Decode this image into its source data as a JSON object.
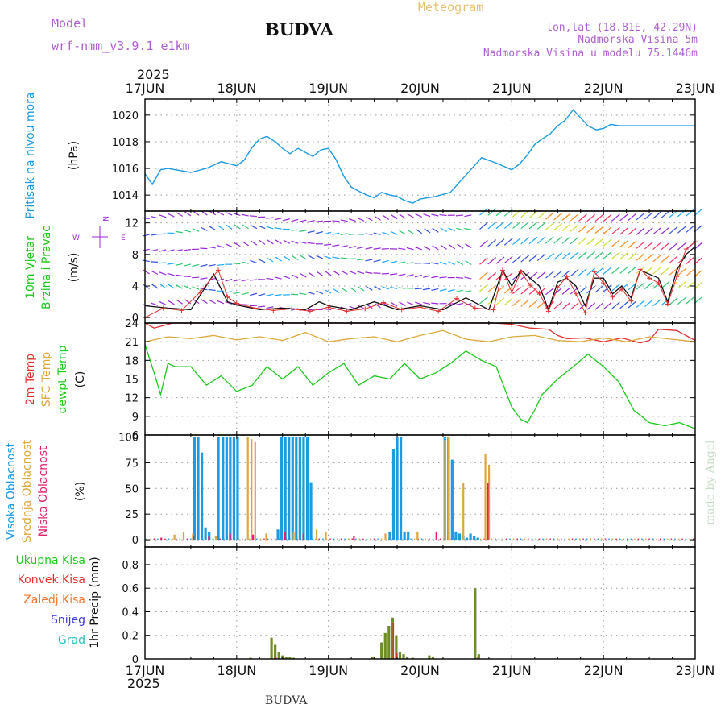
{
  "header": {
    "model_label": "Model",
    "model_name": "wrf-nmm_v3.9.1 e1km",
    "city": "BUDVA",
    "product": "Meteogram",
    "lonlat": "lon,lat (18.81E, 42.29N)",
    "elevation": "Nadmorska Visina 5m",
    "model_elevation": "Nadmorska Visina u modelu 75.1446m",
    "footer_city": "BUDVA",
    "credit": "made by Angel"
  },
  "colors": {
    "pressure": "#1e9be0",
    "temp2m": "#e03030",
    "sfc": "#dca83c",
    "dewpt": "#1ec81e",
    "high_cloud": "#1e9be0",
    "mid_cloud": "#dca83c",
    "low_cloud": "#e0206c",
    "total_precip": "#6e8c28",
    "wind_speed": "#111111",
    "gust": "#e03030",
    "level_purple": "#9a28d8",
    "grid": "#999999"
  },
  "time_axis": {
    "year": "2025",
    "ticks": [
      "17JUN",
      "18JUN",
      "19JUN",
      "20JUN",
      "21JUN",
      "22JUN",
      "23JUN"
    ],
    "range_days": [
      0,
      6
    ]
  },
  "chart_data": [
    {
      "type": "line",
      "panel": "pressure",
      "ylabel": "Pritisak na nivou mora",
      "unit": "(hPa)",
      "ylim": [
        1012.8,
        1021.2
      ],
      "yticks": [
        1014,
        1016,
        1018,
        1020
      ],
      "grid": true,
      "series": [
        {
          "name": "Pritisak na nivou mora",
          "x": [
            0,
            0.08,
            0.17,
            0.25,
            0.33,
            0.5,
            0.67,
            0.83,
            1.0,
            1.08,
            1.17,
            1.25,
            1.33,
            1.42,
            1.5,
            1.58,
            1.67,
            1.75,
            1.83,
            1.92,
            2.0,
            2.08,
            2.17,
            2.25,
            2.33,
            2.42,
            2.5,
            2.58,
            2.67,
            2.75,
            2.83,
            2.92,
            3.0,
            3.17,
            3.33,
            3.5,
            3.67,
            3.83,
            4.0,
            4.08,
            4.17,
            4.25,
            4.33,
            4.42,
            4.5,
            4.58,
            4.67,
            4.75,
            4.83,
            4.92,
            5.0,
            5.08,
            5.17,
            5.25,
            5.33,
            5.42,
            5.5,
            5.58,
            5.67,
            5.75,
            5.83,
            5.92,
            6.0
          ],
          "values": [
            1015.6,
            1014.8,
            1015.9,
            1016.0,
            1015.9,
            1015.7,
            1016.0,
            1016.5,
            1016.2,
            1016.6,
            1017.6,
            1018.2,
            1018.4,
            1018.0,
            1017.5,
            1017.1,
            1017.5,
            1017.2,
            1016.9,
            1017.4,
            1017.5,
            1016.7,
            1015.4,
            1014.6,
            1014.3,
            1014.0,
            1013.8,
            1014.2,
            1014.0,
            1013.9,
            1013.6,
            1013.4,
            1013.7,
            1013.9,
            1014.2,
            1015.5,
            1016.8,
            1016.4,
            1015.9,
            1016.3,
            1017.0,
            1017.8,
            1018.2,
            1018.6,
            1019.2,
            1019.6,
            1020.4,
            1019.8,
            1019.2,
            1018.9,
            1019.0,
            1019.3,
            1019.2,
            1019.2,
            1019.2,
            1019.2,
            1019.2,
            1019.2,
            1019.2,
            1019.2,
            1019.2,
            1019.2,
            1019.2
          ]
        }
      ]
    },
    {
      "type": "line",
      "panel": "wind",
      "ylabel": "10m Vjetar Brzina i Pravac",
      "unit": "(m/s)",
      "compass": [
        "W",
        "N",
        "E"
      ],
      "ylim": [
        -0.7,
        13.5
      ],
      "yticks": [
        0,
        4,
        8,
        12
      ],
      "grid": true,
      "series": [
        {
          "name": "Brzina",
          "x": [
            0,
            0.25,
            0.5,
            0.75,
            0.9,
            1.0,
            1.25,
            1.5,
            1.75,
            1.9,
            2.0,
            2.25,
            2.5,
            2.75,
            3.0,
            3.25,
            3.5,
            3.75,
            3.9,
            4.0,
            4.1,
            4.2,
            4.3,
            4.4,
            4.5,
            4.6,
            4.7,
            4.8,
            4.9,
            5.0,
            5.1,
            5.2,
            5.3,
            5.4,
            5.5,
            5.6,
            5.7,
            5.8,
            5.9,
            6.0
          ],
          "values": [
            1.5,
            1.2,
            1.0,
            5.5,
            2.0,
            1.6,
            1.0,
            1.2,
            1.0,
            2.0,
            1.5,
            1.0,
            2.0,
            1.0,
            1.5,
            1.0,
            2.5,
            1.0,
            6.0,
            4.0,
            6.0,
            5.0,
            4.0,
            1.0,
            4.5,
            5.0,
            4.0,
            1.5,
            5.0,
            5.0,
            3.0,
            4.0,
            2.5,
            6.0,
            5.5,
            5.0,
            2.0,
            6.0,
            8.0,
            9.0
          ]
        },
        {
          "name": "Udari",
          "x": [
            0,
            0.2,
            0.4,
            0.6,
            0.8,
            0.9,
            1.0,
            1.2,
            1.4,
            1.6,
            1.8,
            2.0,
            2.2,
            2.4,
            2.6,
            2.8,
            3.0,
            3.2,
            3.4,
            3.6,
            3.8,
            3.9,
            4.0,
            4.1,
            4.2,
            4.3,
            4.4,
            4.5,
            4.6,
            4.7,
            4.8,
            4.9,
            5.0,
            5.1,
            5.2,
            5.3,
            5.4,
            5.5,
            5.6,
            5.7,
            5.8,
            5.9,
            6.0
          ],
          "values": [
            0,
            1.2,
            0.9,
            3.2,
            6.0,
            2.6,
            1.8,
            1.2,
            0.9,
            1.1,
            0.8,
            1.3,
            0.8,
            1.1,
            1.9,
            1.0,
            1.3,
            0.8,
            2.4,
            1.2,
            1.0,
            6.0,
            3.2,
            5.8,
            4.1,
            3.1,
            0.8,
            3.8,
            5.2,
            3.0,
            0.6,
            5.8,
            4.4,
            2.6,
            3.6,
            2.1,
            6.1,
            5.0,
            4.4,
            1.7,
            5.2,
            8.7,
            9.6
          ]
        }
      ]
    },
    {
      "type": "line",
      "panel": "temperature",
      "ylabels": [
        "2m Temp",
        "SFC Temp",
        "dewpt Temp"
      ],
      "unit": "(C)",
      "ylim": [
        6,
        24
      ],
      "yticks": [
        6,
        9,
        12,
        15,
        18,
        21,
        24
      ],
      "grid": true,
      "series": [
        {
          "name": "2m Temp",
          "x": [
            0,
            0.1,
            0.2,
            0.3,
            0.5,
            1.0,
            1.5,
            2.0,
            2.5,
            3.0,
            3.5,
            3.8,
            4.0,
            4.2,
            4.4,
            4.5,
            4.6,
            4.8,
            5.0,
            5.2,
            5.4,
            5.5,
            5.6,
            5.8,
            6.0
          ],
          "values": [
            24,
            23.2,
            23.6,
            24,
            24,
            24,
            24,
            24,
            24,
            24,
            24,
            24,
            23.8,
            23.2,
            23.0,
            22.0,
            21.5,
            21.6,
            21.0,
            21.6,
            20.8,
            21.2,
            23.0,
            22.8,
            21.2
          ]
        },
        {
          "name": "SFC Temp",
          "x": [
            0,
            0.25,
            0.5,
            0.75,
            1.0,
            1.25,
            1.5,
            1.75,
            2.0,
            2.25,
            2.5,
            2.75,
            3.0,
            3.25,
            3.5,
            3.75,
            4.0,
            4.25,
            4.5,
            4.75,
            5.0,
            5.25,
            5.5,
            5.75,
            6.0
          ],
          "values": [
            21.0,
            21.8,
            21.5,
            22.0,
            21.3,
            21.8,
            21.2,
            22.5,
            21.0,
            21.5,
            21.8,
            21.0,
            22.0,
            22.8,
            21.4,
            21.0,
            21.8,
            22.0,
            21.2,
            21.0,
            21.6,
            21.0,
            21.8,
            21.4,
            21.0
          ]
        },
        {
          "name": "dewpt Temp",
          "x": [
            0,
            0.1,
            0.17,
            0.25,
            0.33,
            0.5,
            0.67,
            0.83,
            1.0,
            1.17,
            1.33,
            1.5,
            1.67,
            1.83,
            2.0,
            2.17,
            2.33,
            2.5,
            2.67,
            2.83,
            3.0,
            3.17,
            3.33,
            3.5,
            3.67,
            3.83,
            4.0,
            4.1,
            4.17,
            4.25,
            4.33,
            4.5,
            4.67,
            4.83,
            5.0,
            5.17,
            5.33,
            5.5,
            5.67,
            5.83,
            6.0
          ],
          "values": [
            20.5,
            16.0,
            12.5,
            17.5,
            17.0,
            17.0,
            14.0,
            15.5,
            13.0,
            14.0,
            17.0,
            15.0,
            17.0,
            14.0,
            16.0,
            17.5,
            14.0,
            15.5,
            15.0,
            17.5,
            15.0,
            16.0,
            17.5,
            19.5,
            18.0,
            17.0,
            10.5,
            8.5,
            8.0,
            10.0,
            12.5,
            15.0,
            17.0,
            19.0,
            17.0,
            14.5,
            10.0,
            8.0,
            7.5,
            8.0,
            7.0
          ]
        }
      ]
    },
    {
      "type": "bar",
      "panel": "clouds",
      "ylabels": [
        "Visoka Oblacnost",
        "Srednja Oblacnost",
        "Niska Oblacnost"
      ],
      "unit": "(%)",
      "ylim": [
        -7,
        102
      ],
      "yticks": [
        0,
        25,
        50,
        75,
        100
      ],
      "grid": true,
      "series": [
        {
          "name": "Visoka Oblacnost",
          "x": [
            0.54,
            0.58,
            0.62,
            0.66,
            0.7,
            0.8,
            0.85,
            0.89,
            0.93,
            0.97,
            1.01,
            1.45,
            1.49,
            1.53,
            1.57,
            1.61,
            1.65,
            1.69,
            1.73,
            1.77,
            1.81,
            2.67,
            2.71,
            2.75,
            2.79,
            2.83,
            2.87,
            3.27,
            3.31,
            3.35,
            3.39,
            3.43,
            3.47,
            3.51,
            3.55,
            3.59,
            3.63
          ],
          "values": [
            100,
            100,
            85,
            12,
            8,
            100,
            100,
            100,
            100,
            100,
            100,
            10,
            100,
            100,
            100,
            100,
            100,
            100,
            100,
            100,
            56,
            8,
            88,
            100,
            100,
            8,
            8,
            100,
            100,
            78,
            8,
            6,
            4,
            2,
            6,
            4,
            2
          ]
        },
        {
          "name": "Srednja Oblacnost",
          "x": [
            0.3,
            0.4,
            0.5,
            0.75,
            1.1,
            1.14,
            1.18,
            1.3,
            1.6,
            1.85,
            1.95,
            2.6,
            2.95,
            3.25,
            3.29,
            3.45,
            3.69,
            3.73
          ],
          "values": [
            5,
            8,
            6,
            4,
            100,
            98,
            95,
            6,
            8,
            10,
            8,
            6,
            8,
            97,
            100,
            55,
            84,
            73
          ]
        },
        {
          "name": "Niska Oblacnost",
          "x": [
            0.2,
            0.55,
            0.72,
            0.95,
            1.2,
            1.55,
            1.75,
            2.3,
            3.2,
            3.76
          ],
          "values": [
            2,
            4,
            3,
            6,
            5,
            8,
            6,
            4,
            8,
            55
          ]
        }
      ]
    },
    {
      "type": "bar",
      "panel": "precip",
      "legend": [
        "Ukupna Kisa",
        "Konvek.Kisa",
        "Zaledj.Kisa",
        "Snijeg",
        "Grad"
      ],
      "unit": "1hr Precip (mm)",
      "ylim": [
        0,
        0.95
      ],
      "yticks": [
        0,
        0.2,
        0.4,
        0.6,
        0.8
      ],
      "grid": true,
      "series": [
        {
          "name": "Ukupna Kisa",
          "x": [
            1.15,
            1.38,
            1.42,
            1.46,
            1.5,
            1.54,
            1.58,
            1.62,
            2.48,
            2.58,
            2.62,
            2.66,
            2.7,
            2.74,
            2.78,
            2.82,
            2.86,
            2.92,
            3.1,
            3.14,
            3.6,
            3.64
          ],
          "values": [
            0.01,
            0.18,
            0.12,
            0.06,
            0.03,
            0.02,
            0.02,
            0.01,
            0.02,
            0.14,
            0.22,
            0.28,
            0.35,
            0.2,
            0.06,
            0.04,
            0.02,
            0.01,
            0.03,
            0.02,
            0.6,
            0.04
          ]
        },
        {
          "name": "Konvek.Kisa",
          "x": [
            1.42,
            2.7,
            2.74,
            3.62
          ],
          "values": [
            0.02,
            0.3,
            0.05,
            0.02
          ]
        }
      ]
    }
  ]
}
